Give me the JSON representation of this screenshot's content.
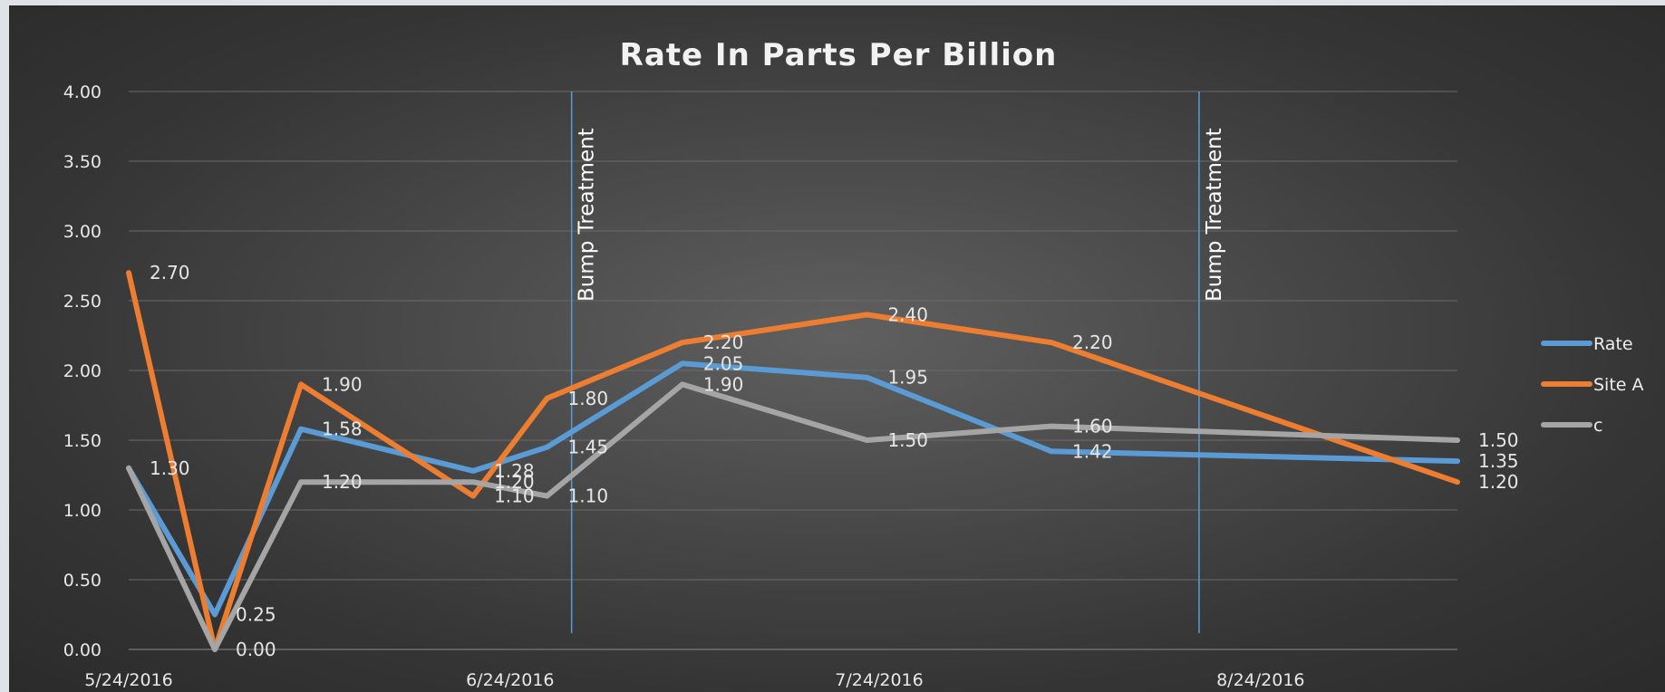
{
  "chart_data": {
    "type": "line",
    "title": "Rate In Parts Per Billion",
    "ylim": [
      0,
      4
    ],
    "y_ticks": [
      "0.00",
      "0.50",
      "1.00",
      "1.50",
      "2.00",
      "2.50",
      "3.00",
      "3.50",
      "4.00"
    ],
    "x_ticks": [
      {
        "date": "2016-05-24",
        "label": "5/24/2016"
      },
      {
        "date": "2016-06-24",
        "label": "6/24/2016"
      },
      {
        "date": "2016-07-24",
        "label": "7/24/2016"
      },
      {
        "date": "2016-08-24",
        "label": "8/24/2016"
      }
    ],
    "x_range": [
      "2016-05-24",
      "2016-09-09"
    ],
    "grid": true,
    "legend_position": "right",
    "x": [
      "2016-05-24",
      "2016-05-31",
      "2016-06-07",
      "2016-06-21",
      "2016-06-27",
      "2016-07-08",
      "2016-07-23",
      "2016-08-07",
      "2016-09-09"
    ],
    "series": [
      {
        "name": "Rate",
        "color": "#5b9bd5",
        "values": [
          1.3,
          0.25,
          1.58,
          1.28,
          1.45,
          2.05,
          1.95,
          1.42,
          1.35
        ],
        "labels": [
          "1.30",
          "0.25",
          "1.58",
          "1.28",
          "1.45",
          "2.05",
          "1.95",
          "1.42",
          "1.35"
        ]
      },
      {
        "name": "Site A",
        "color": "#ed7d31",
        "values": [
          2.7,
          0.0,
          1.9,
          1.1,
          1.8,
          2.2,
          2.4,
          2.2,
          1.2
        ],
        "labels": [
          "2.70",
          "",
          "1.90",
          "1.10",
          "1.80",
          "2.20",
          "2.40",
          "2.20",
          "1.20"
        ]
      },
      {
        "name": "c",
        "color": "#a5a5a5",
        "values": [
          1.3,
          0.0,
          1.2,
          1.2,
          1.1,
          1.9,
          1.5,
          1.6,
          1.5
        ],
        "labels": [
          "",
          "0.00",
          "1.20",
          "1.20",
          "1.10",
          "1.90",
          "1.50",
          "1.60",
          "1.50"
        ]
      }
    ],
    "annotations": [
      {
        "date": "2016-06-29",
        "text": "Bump Treatment"
      },
      {
        "date": "2016-08-19",
        "text": "Bump Treatment"
      }
    ]
  }
}
